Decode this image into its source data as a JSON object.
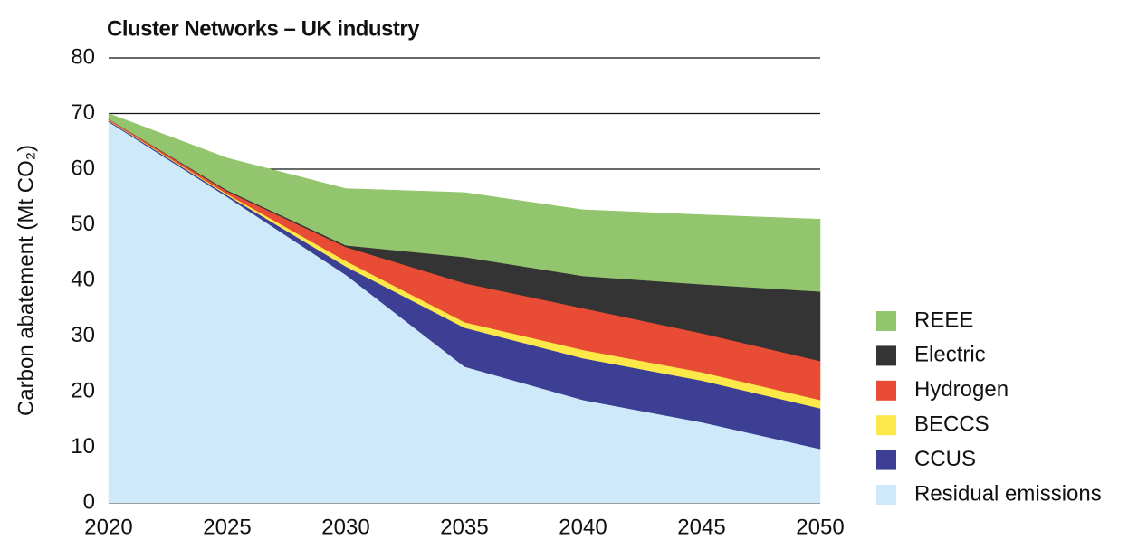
{
  "chart_data": {
    "type": "stacked_area",
    "title": "Cluster Networks – UK industry",
    "ylabel": "Carbon abatement (Mt CO₂)",
    "x": [
      2020,
      2025,
      2030,
      2035,
      2040,
      2045,
      2050
    ],
    "xlim": [
      2020,
      2050
    ],
    "xticks": [
      2020,
      2025,
      2030,
      2035,
      2040,
      2045,
      2050
    ],
    "ylim": [
      0,
      80
    ],
    "yticks": [
      0,
      10,
      20,
      30,
      40,
      50,
      60,
      70,
      80
    ],
    "grid": true,
    "legend": "right",
    "series": [
      {
        "name": "Residual emissions",
        "color": "#cde9fa",
        "values": [
          68.5,
          55,
          41,
          24.5,
          18.5,
          14.5,
          9.7
        ]
      },
      {
        "name": "CCUS",
        "color": "#3c3f94",
        "values": [
          0.2,
          0.3,
          1.5,
          7,
          7.5,
          7.5,
          7.3
        ]
      },
      {
        "name": "BECCS",
        "color": "#fde84a",
        "values": [
          0.1,
          0.2,
          1,
          1,
          1.5,
          1.5,
          1.5
        ]
      },
      {
        "name": "Hydrogen",
        "color": "#e84c35",
        "values": [
          0.2,
          0.5,
          2.5,
          7,
          7.5,
          7,
          7
        ]
      },
      {
        "name": "Electric",
        "color": "#343434",
        "values": [
          0,
          0.2,
          0.3,
          4.7,
          5.8,
          8.8,
          12.5
        ]
      },
      {
        "name": "REEE",
        "color": "#92c56d",
        "values": [
          1,
          5.8,
          10.2,
          11.6,
          11.9,
          12.5,
          13
        ]
      }
    ]
  }
}
